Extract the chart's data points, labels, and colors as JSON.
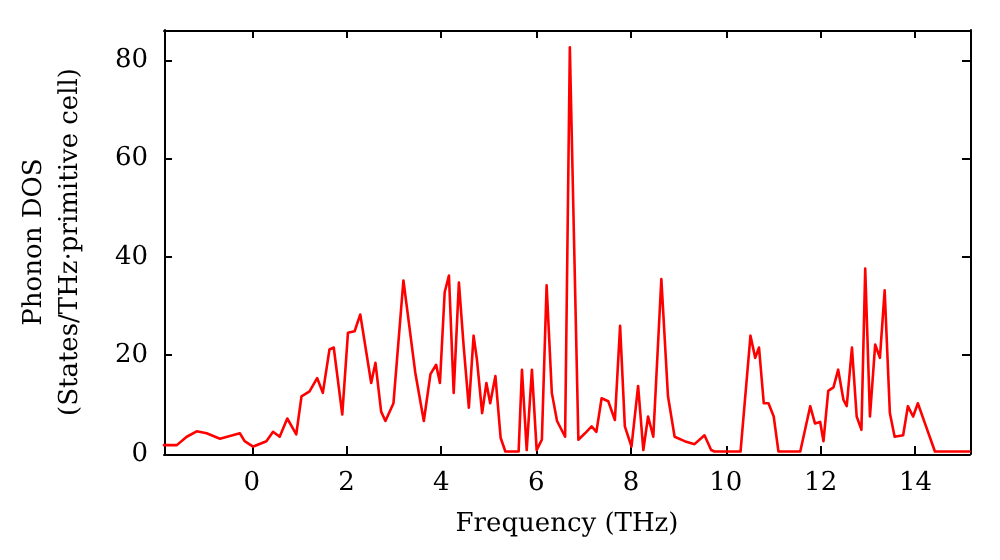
{
  "chart_data": {
    "type": "line",
    "xlabel": "Frequency (THz)",
    "ylabel": "Phonon DOS\n(States/THz·primitive cell)",
    "xlim": [
      -1.85,
      15.15
    ],
    "ylim": [
      0,
      86
    ],
    "xticks": [
      0,
      2,
      4,
      6,
      8,
      10,
      12,
      14
    ],
    "yticks": [
      0,
      20,
      40,
      60,
      80
    ],
    "grid": false,
    "marker": "none",
    "line_style": "solid",
    "series": [
      {
        "color": "#ff0000",
        "x": [
          -1.85,
          -1.58,
          -1.37,
          -1.16,
          -0.95,
          -0.67,
          -0.25,
          -0.15,
          0.03,
          0.31,
          0.45,
          0.59,
          0.75,
          0.94,
          1.05,
          1.22,
          1.38,
          1.5,
          1.64,
          1.73,
          1.91,
          2.03,
          2.17,
          2.29,
          2.52,
          2.61,
          2.73,
          2.82,
          2.99,
          3.2,
          3.45,
          3.63,
          3.77,
          3.89,
          3.97,
          4.07,
          4.16,
          4.26,
          4.37,
          4.47,
          4.58,
          4.68,
          4.75,
          4.86,
          4.95,
          5.03,
          5.14,
          5.25,
          5.35,
          5.63,
          5.7,
          5.8,
          5.91,
          6.01,
          6.12,
          6.22,
          6.33,
          6.44,
          6.61,
          6.71,
          6.89,
          7.03,
          7.17,
          7.27,
          7.38,
          7.52,
          7.66,
          7.77,
          7.87,
          8.01,
          8.15,
          8.26,
          8.36,
          8.47,
          8.64,
          8.78,
          8.92,
          9.13,
          9.34,
          9.55,
          9.69,
          9.76,
          10.31,
          10.52,
          10.62,
          10.7,
          10.8,
          10.9,
          11.01,
          11.11,
          11.57,
          11.78,
          11.88,
          11.99,
          12.06,
          12.16,
          12.27,
          12.37,
          12.48,
          12.55,
          12.66,
          12.76,
          12.86,
          12.94,
          13.04,
          13.15,
          13.25,
          13.35,
          13.46,
          13.56,
          13.74,
          13.84,
          13.95,
          14.05,
          14.2,
          14.3,
          14.41,
          15.14
        ],
        "values": [
          1.8,
          1.8,
          3.5,
          4.6,
          4.2,
          3.1,
          4.2,
          2.6,
          1.5,
          2.6,
          4.5,
          3.5,
          7.2,
          4.0,
          11.7,
          12.7,
          15.4,
          12.4,
          21.2,
          21.6,
          8.0,
          24.6,
          24.9,
          28.3,
          14.4,
          18.5,
          8.6,
          6.7,
          10.3,
          35.2,
          16.5,
          6.7,
          16.2,
          18.1,
          14.4,
          32.8,
          36.2,
          12.4,
          34.8,
          21.9,
          9.4,
          24.0,
          19.2,
          8.3,
          14.4,
          10.3,
          15.8,
          3.3,
          0.5,
          0.5,
          17.1,
          0.8,
          17.1,
          0.8,
          2.9,
          34.2,
          12.4,
          6.7,
          3.5,
          82.5,
          2.9,
          4.2,
          5.6,
          4.5,
          11.3,
          10.7,
          6.9,
          26,
          5.6,
          1.5,
          13.8,
          0.8,
          7.6,
          3.5,
          35.5,
          11.7,
          3.5,
          2.6,
          2.0,
          3.8,
          0.8,
          0.5,
          0.5,
          24.0,
          19.5,
          21.6,
          10.3,
          10.3,
          7.6,
          0.5,
          0.5,
          9.7,
          6.2,
          6.5,
          2.6,
          12.8,
          13.5,
          17.1,
          11,
          9.7,
          21.6,
          7.6,
          4.9,
          37.6,
          7.6,
          22.2,
          19.5,
          33.2,
          8.3,
          3.5,
          3.8,
          9.7,
          7.6,
          10.3,
          6.2,
          3.5,
          0.5,
          0.5
        ]
      }
    ]
  }
}
